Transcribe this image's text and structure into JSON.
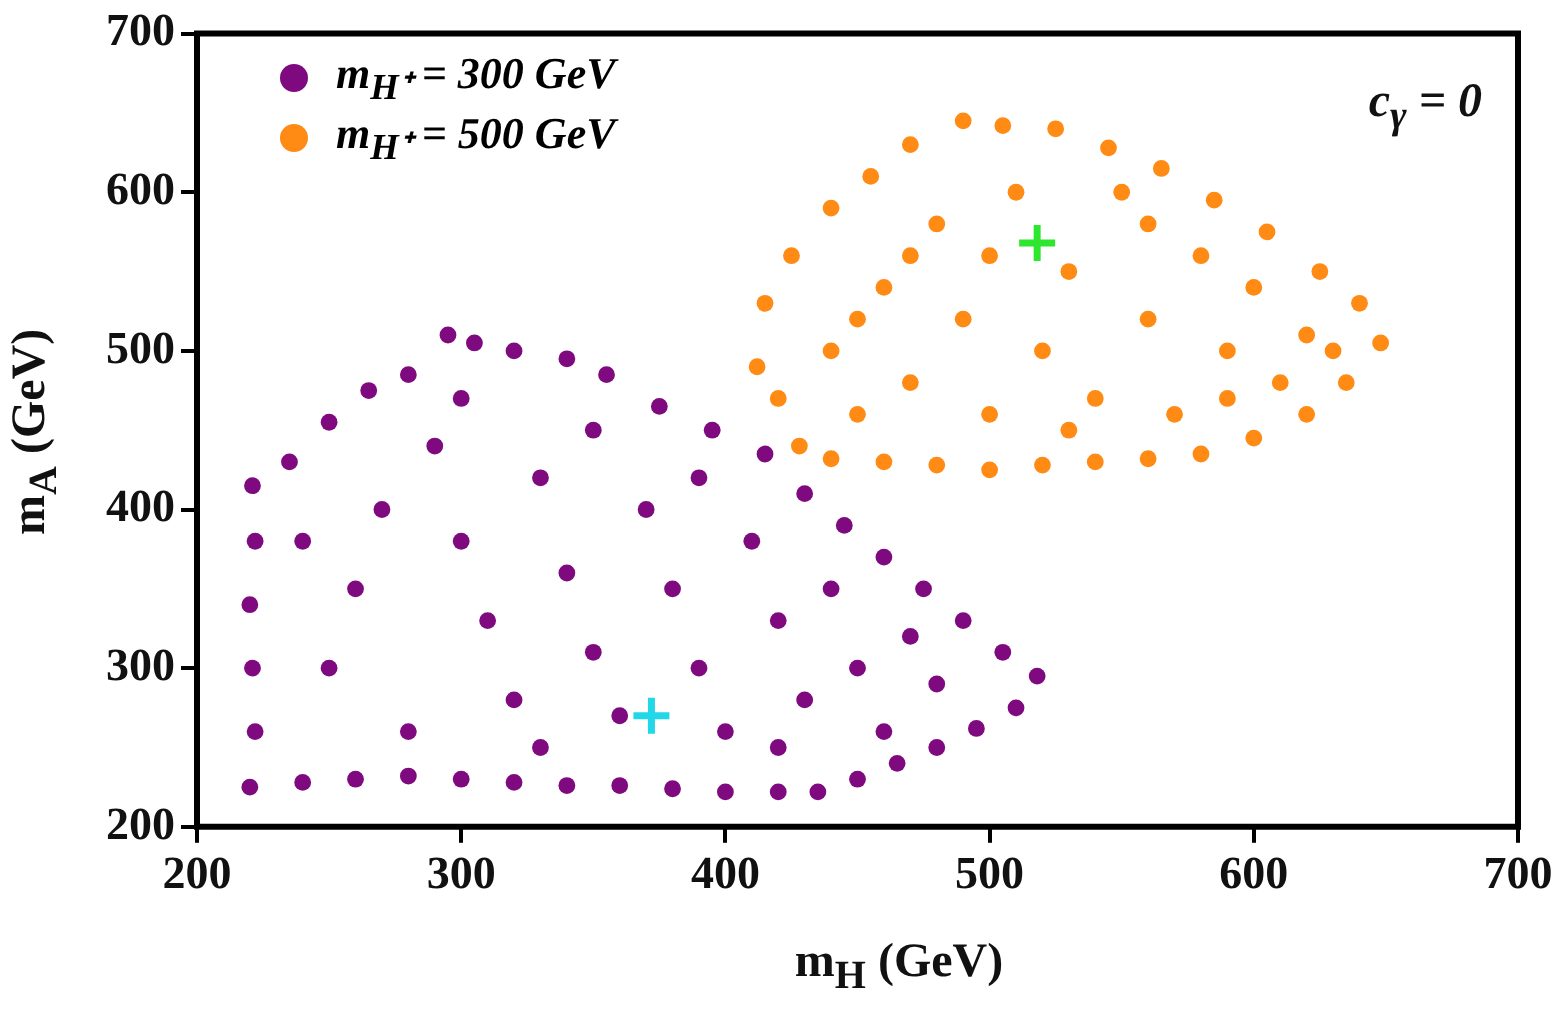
{
  "chart_data": {
    "type": "scatter",
    "xlabel": "m$_{H}$ (GeV)",
    "ylabel": "m$_{A}$ (GeV)",
    "annotations": [
      "c$_{γ}$ = 0"
    ],
    "xlim": [
      200,
      700
    ],
    "xticks": [
      200,
      300,
      400,
      500,
      600,
      700
    ],
    "ylim": [
      200,
      700
    ],
    "yticks": [
      200,
      300,
      400,
      500,
      600,
      700
    ],
    "grid": false,
    "legend": "top left",
    "series": [
      {
        "name": "m$_{H⁺}$ = 300 GeV",
        "marker": "circle",
        "color": "#7f0a80",
        "x": [
          220,
          222,
          221,
          220,
          222,
          221,
          235,
          250,
          265,
          280,
          295,
          305,
          320,
          340,
          355,
          375,
          395,
          415,
          430,
          445,
          460,
          475,
          490,
          505,
          518,
          510,
          495,
          480,
          465,
          450,
          435,
          420,
          400,
          380,
          360,
          340,
          320,
          300,
          280,
          260,
          240,
          250,
          260,
          270,
          290,
          300,
          310,
          320,
          330,
          340,
          350,
          360,
          370,
          380,
          390,
          400,
          410,
          420,
          430,
          440,
          450,
          460,
          470,
          480,
          240,
          280,
          350,
          300,
          390,
          330,
          420
        ],
        "values": [
          225,
          260,
          300,
          340,
          380,
          415,
          430,
          455,
          475,
          485,
          510,
          505,
          500,
          495,
          485,
          465,
          450,
          435,
          410,
          390,
          370,
          350,
          330,
          310,
          295,
          275,
          262,
          250,
          240,
          230,
          222,
          222,
          222,
          224,
          226,
          226,
          228,
          230,
          232,
          230,
          228,
          300,
          350,
          400,
          440,
          380,
          330,
          280,
          420,
          360,
          310,
          270,
          400,
          350,
          300,
          260,
          380,
          330,
          280,
          350,
          300,
          260,
          320,
          290,
          380,
          260,
          450,
          470,
          420,
          250,
          250
        ]
      },
      {
        "name": "m$_{H⁺}$ = 500 GeV",
        "marker": "circle",
        "color": "#ff8a14",
        "x": [
          412,
          420,
          428,
          440,
          460,
          480,
          500,
          520,
          540,
          560,
          580,
          600,
          620,
          635,
          648,
          640,
          625,
          605,
          585,
          565,
          545,
          525,
          505,
          490,
          470,
          455,
          440,
          425,
          415,
          440,
          450,
          460,
          470,
          480,
          490,
          500,
          510,
          520,
          530,
          540,
          550,
          560,
          570,
          580,
          590,
          600,
          610,
          620,
          530,
          470,
          500,
          560,
          590,
          450,
          630
        ],
        "values": [
          490,
          470,
          440,
          432,
          430,
          428,
          425,
          428,
          430,
          432,
          435,
          445,
          460,
          480,
          505,
          530,
          550,
          575,
          595,
          615,
          628,
          640,
          642,
          645,
          630,
          610,
          590,
          560,
          530,
          500,
          460,
          540,
          480,
          580,
          520,
          460,
          600,
          500,
          550,
          470,
          600,
          520,
          460,
          560,
          500,
          540,
          480,
          510,
          450,
          560,
          560,
          580,
          470,
          520,
          500
        ]
      },
      {
        "marker": "cross",
        "color": "#22d8e8",
        "x": [
          372
        ],
        "values": [
          270
        ]
      },
      {
        "marker": "cross",
        "color": "#2ee62e",
        "x": [
          518
        ],
        "values": [
          568
        ]
      }
    ]
  }
}
